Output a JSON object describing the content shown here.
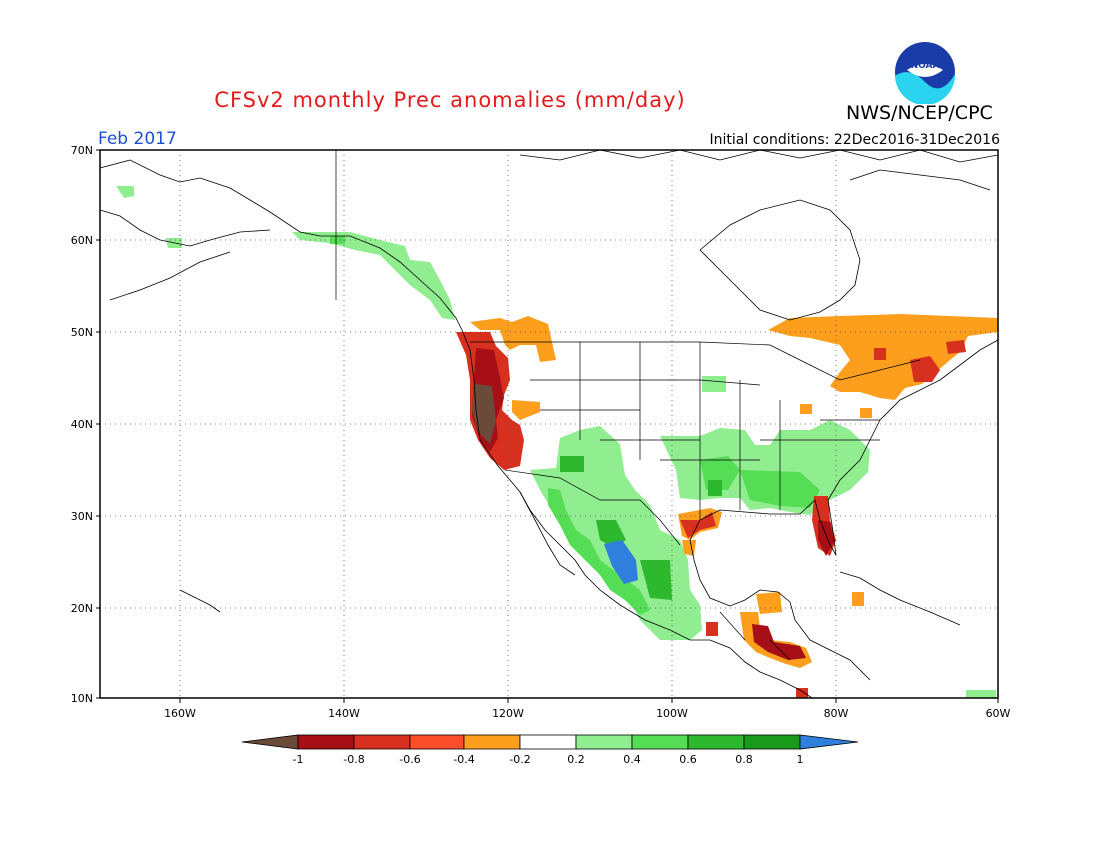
{
  "header": {
    "title": "CFSv2 monthly Prec anomalies (mm/day)",
    "agency": "NWS/NCEP/CPC",
    "logo_text": "NOAA",
    "month": "Feb 2017",
    "initial_conditions": "Initial conditions: 22Dec2016-31Dec2016"
  },
  "axes": {
    "lat_labels": [
      "70N",
      "60N",
      "50N",
      "40N",
      "30N",
      "20N",
      "10N"
    ],
    "lon_labels": [
      "160W",
      "140W",
      "120W",
      "100W",
      "80W",
      "60W"
    ],
    "lat_range": [
      10,
      70
    ],
    "lon_range": [
      -172,
      -60
    ],
    "grid": true
  },
  "colorbar": {
    "labels": [
      "-1",
      "-0.8",
      "-0.6",
      "-0.4",
      "-0.2",
      "0.2",
      "0.4",
      "0.6",
      "0.8",
      "1"
    ],
    "colors": {
      "lt_-1": "#6b4a3a",
      "-1_-0.8": "#a50f15",
      "-0.8_-0.6": "#d7301f",
      "-0.6_-0.4": "#fc4e2a",
      "-0.4_-0.2": "#fd9f1c",
      "-0.2_0.2": "#ffffff",
      "0.2_0.4": "#90ee90",
      "0.4_0.6": "#55dd55",
      "0.6_0.8": "#2eb82e",
      "0.8_1": "#1a9a1a",
      "gt_1": "#2f7fdc"
    }
  },
  "colors": {
    "title": "#e41a1c",
    "month": "#1f4fd8",
    "logo_blue": "#1a3ca8",
    "logo_cyan": "#2ad4f0"
  }
}
